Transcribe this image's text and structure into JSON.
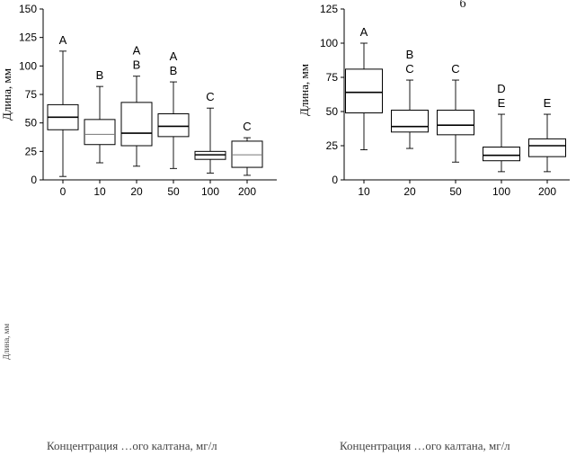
{
  "chart_data": [
    {
      "type": "box",
      "panel_letter": "",
      "ylabel": "Длина, мм",
      "xlabel_fragment": "Концентрация … мг/л",
      "ylim": [
        0,
        150
      ],
      "yticks": [
        0,
        25,
        50,
        75,
        100,
        125,
        150
      ],
      "categories": [
        "0",
        "10",
        "20",
        "50",
        "100",
        "200"
      ],
      "boxes": [
        {
          "category": "0",
          "min": 3,
          "q1": 44,
          "median": 55,
          "q3": 66,
          "max": 113,
          "label": [
            "A"
          ]
        },
        {
          "category": "10",
          "min": 15,
          "q1": 31,
          "median": 40,
          "q3": 53,
          "max": 82,
          "label": [
            "B"
          ]
        },
        {
          "category": "20",
          "min": 12,
          "q1": 30,
          "median": 41,
          "q3": 68,
          "max": 91,
          "label": [
            "A",
            "B"
          ]
        },
        {
          "category": "50",
          "min": 10,
          "q1": 38,
          "median": 47,
          "q3": 58,
          "max": 86,
          "label": [
            "A",
            "B"
          ]
        },
        {
          "category": "100",
          "min": 6,
          "q1": 18,
          "median": 22,
          "q3": 25,
          "max": 63,
          "label": [
            "C"
          ]
        },
        {
          "category": "200",
          "min": 4,
          "q1": 11,
          "median": 22,
          "q3": 34,
          "max": 37,
          "label": [
            "C"
          ]
        }
      ]
    },
    {
      "type": "box",
      "panel_letter": "б",
      "ylabel": "Длина, мм",
      "xlabel_fragment": "Концентрация … мг/л",
      "ylim": [
        0,
        125
      ],
      "yticks": [
        0,
        25,
        50,
        75,
        100,
        125
      ],
      "categories": [
        "10",
        "20",
        "50",
        "100",
        "200"
      ],
      "boxes": [
        {
          "category": "10",
          "min": 22,
          "q1": 49,
          "median": 64,
          "q3": 81,
          "max": 100,
          "label": [
            "A"
          ]
        },
        {
          "category": "20",
          "min": 23,
          "q1": 35,
          "median": 39,
          "q3": 51,
          "max": 73,
          "label": [
            "B",
            "C"
          ]
        },
        {
          "category": "50",
          "min": 13,
          "q1": 33,
          "median": 40,
          "q3": 51,
          "max": 73,
          "label": [
            "C"
          ]
        },
        {
          "category": "100",
          "min": 6,
          "q1": 14,
          "median": 18,
          "q3": 24,
          "max": 48,
          "label": [
            "D",
            "E"
          ]
        },
        {
          "category": "200",
          "min": 6,
          "q1": 17,
          "median": 25,
          "q3": 30,
          "max": 48,
          "label": [
            "E"
          ]
        }
      ]
    }
  ],
  "lower_fragments": {
    "left_xlabel": "Концентрация …ого калтана, мг/л",
    "right_xlabel": "Концентрация …ого калтана, мг/л",
    "left_ylabel": "Длина, мм"
  }
}
